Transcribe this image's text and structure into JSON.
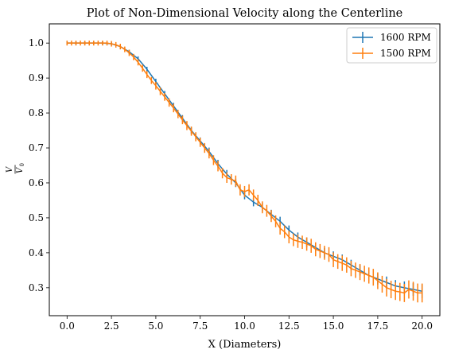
{
  "chart_data": {
    "type": "line",
    "title": "Plot of Non-Dimensional Velocity along the Centerline",
    "xlabel": "X (Diameters)",
    "ylabel": {
      "numerator": "V",
      "denominator": "V",
      "denominator_subscript": "0"
    },
    "xlim": [
      -1.0,
      21.0
    ],
    "ylim": [
      0.22,
      1.055
    ],
    "xticks": [
      0.0,
      2.5,
      5.0,
      7.5,
      10.0,
      12.5,
      15.0,
      17.5,
      20.0
    ],
    "xtick_labels": [
      "0.0",
      "2.5",
      "5.0",
      "7.5",
      "10.0",
      "12.5",
      "15.0",
      "17.5",
      "20.0"
    ],
    "yticks": [
      0.3,
      0.4,
      0.5,
      0.6,
      0.7,
      0.8,
      0.9,
      1.0
    ],
    "ytick_labels": [
      "0.3",
      "0.4",
      "0.5",
      "0.6",
      "0.7",
      "0.8",
      "0.9",
      "1.0"
    ],
    "legend_position": "top-right",
    "series": [
      {
        "name": "1600 RPM",
        "color": "#1f77b4",
        "x": [
          0,
          0.5,
          1,
          1.5,
          2,
          2.5,
          3,
          3.5,
          4,
          4.5,
          5,
          5.5,
          6,
          6.5,
          7,
          7.5,
          8,
          8.5,
          9,
          9.5,
          10,
          10.5,
          11,
          11.5,
          12,
          12.5,
          13,
          13.5,
          14,
          14.5,
          15,
          15.5,
          16,
          16.5,
          17,
          17.5,
          18,
          18.5,
          19,
          19.5,
          20
        ],
        "y": [
          1.0,
          1.0,
          1.0,
          1.0,
          1.0,
          0.998,
          0.99,
          0.975,
          0.955,
          0.925,
          0.89,
          0.855,
          0.82,
          0.785,
          0.75,
          0.72,
          0.69,
          0.655,
          0.625,
          0.6,
          0.565,
          0.545,
          0.53,
          0.51,
          0.49,
          0.465,
          0.445,
          0.43,
          0.415,
          0.4,
          0.39,
          0.38,
          0.365,
          0.35,
          0.335,
          0.325,
          0.315,
          0.305,
          0.3,
          0.295,
          0.29
        ],
        "yerr": [
          0.005,
          0.005,
          0.005,
          0.005,
          0.005,
          0.005,
          0.006,
          0.006,
          0.007,
          0.007,
          0.008,
          0.008,
          0.009,
          0.009,
          0.01,
          0.01,
          0.011,
          0.011,
          0.012,
          0.012,
          0.012,
          0.012,
          0.012,
          0.013,
          0.013,
          0.013,
          0.013,
          0.014,
          0.014,
          0.014,
          0.014,
          0.015,
          0.015,
          0.015,
          0.016,
          0.016,
          0.017,
          0.017,
          0.018,
          0.018,
          0.02
        ]
      },
      {
        "name": "1500 RPM",
        "color": "#ff7f0e",
        "x": [
          0,
          0.25,
          0.5,
          0.75,
          1,
          1.25,
          1.5,
          1.75,
          2,
          2.25,
          2.5,
          2.75,
          3,
          3.25,
          3.5,
          3.75,
          4,
          4.25,
          4.5,
          4.75,
          5,
          5.25,
          5.5,
          5.75,
          6,
          6.25,
          6.5,
          6.75,
          7,
          7.25,
          7.5,
          7.75,
          8,
          8.25,
          8.5,
          8.75,
          9,
          9.25,
          9.5,
          9.75,
          10,
          10.25,
          10.5,
          10.75,
          11,
          11.25,
          11.5,
          11.75,
          12,
          12.25,
          12.5,
          12.75,
          13,
          13.25,
          13.5,
          13.75,
          14,
          14.25,
          14.5,
          14.75,
          15,
          15.25,
          15.5,
          15.75,
          16,
          16.25,
          16.5,
          16.75,
          17,
          17.25,
          17.5,
          17.75,
          18,
          18.25,
          18.5,
          18.75,
          19,
          19.25,
          19.5,
          19.75,
          20
        ],
        "y": [
          1.0,
          1.0,
          1.0,
          1.0,
          1.0,
          1.0,
          1.0,
          1.0,
          1.0,
          1.0,
          0.998,
          0.995,
          0.99,
          0.982,
          0.972,
          0.96,
          0.945,
          0.928,
          0.91,
          0.893,
          0.878,
          0.862,
          0.846,
          0.83,
          0.814,
          0.797,
          0.78,
          0.764,
          0.748,
          0.732,
          0.716,
          0.7,
          0.684,
          0.665,
          0.648,
          0.628,
          0.615,
          0.61,
          0.605,
          0.58,
          0.575,
          0.58,
          0.565,
          0.55,
          0.53,
          0.52,
          0.505,
          0.49,
          0.47,
          0.46,
          0.445,
          0.437,
          0.433,
          0.43,
          0.425,
          0.42,
          0.41,
          0.405,
          0.4,
          0.395,
          0.38,
          0.375,
          0.37,
          0.365,
          0.355,
          0.35,
          0.345,
          0.34,
          0.335,
          0.33,
          0.32,
          0.31,
          0.3,
          0.295,
          0.29,
          0.288,
          0.285,
          0.295,
          0.29,
          0.285,
          0.285
        ],
        "yerr": [
          0.007,
          0.007,
          0.007,
          0.007,
          0.007,
          0.007,
          0.007,
          0.007,
          0.007,
          0.007,
          0.008,
          0.008,
          0.008,
          0.008,
          0.009,
          0.009,
          0.009,
          0.01,
          0.01,
          0.01,
          0.011,
          0.011,
          0.011,
          0.012,
          0.012,
          0.012,
          0.012,
          0.013,
          0.013,
          0.013,
          0.013,
          0.014,
          0.014,
          0.014,
          0.015,
          0.015,
          0.015,
          0.015,
          0.016,
          0.016,
          0.016,
          0.016,
          0.016,
          0.016,
          0.017,
          0.017,
          0.017,
          0.017,
          0.018,
          0.018,
          0.018,
          0.018,
          0.019,
          0.019,
          0.019,
          0.02,
          0.02,
          0.02,
          0.02,
          0.021,
          0.021,
          0.021,
          0.022,
          0.022,
          0.022,
          0.022,
          0.023,
          0.023,
          0.023,
          0.024,
          0.024,
          0.024,
          0.025,
          0.025,
          0.025,
          0.026,
          0.026,
          0.026,
          0.027,
          0.027,
          0.027
        ]
      }
    ]
  }
}
